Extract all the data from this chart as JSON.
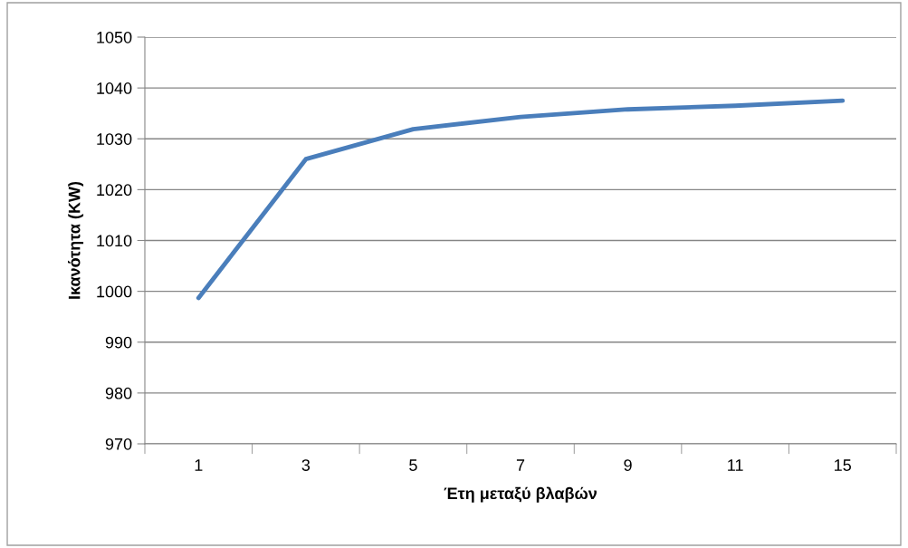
{
  "chart_data": {
    "type": "line",
    "xlabel": "Έτη μεταξύ βλαβών",
    "ylabel": "Ικανότητα (KW)",
    "categories": [
      "1",
      "3",
      "5",
      "7",
      "9",
      "11",
      "15"
    ],
    "series": [
      {
        "color": "#4a7ebb",
        "values": [
          998.7,
          1026,
          1031.9,
          1034.3,
          1035.8,
          1036.5,
          1037.5
        ]
      }
    ],
    "ylim": [
      970,
      1050
    ],
    "yticks": [
      970,
      980,
      990,
      1000,
      1010,
      1020,
      1030,
      1040,
      1050
    ],
    "grid": "y",
    "legend": false,
    "marker": "none",
    "line_style": "solid"
  }
}
